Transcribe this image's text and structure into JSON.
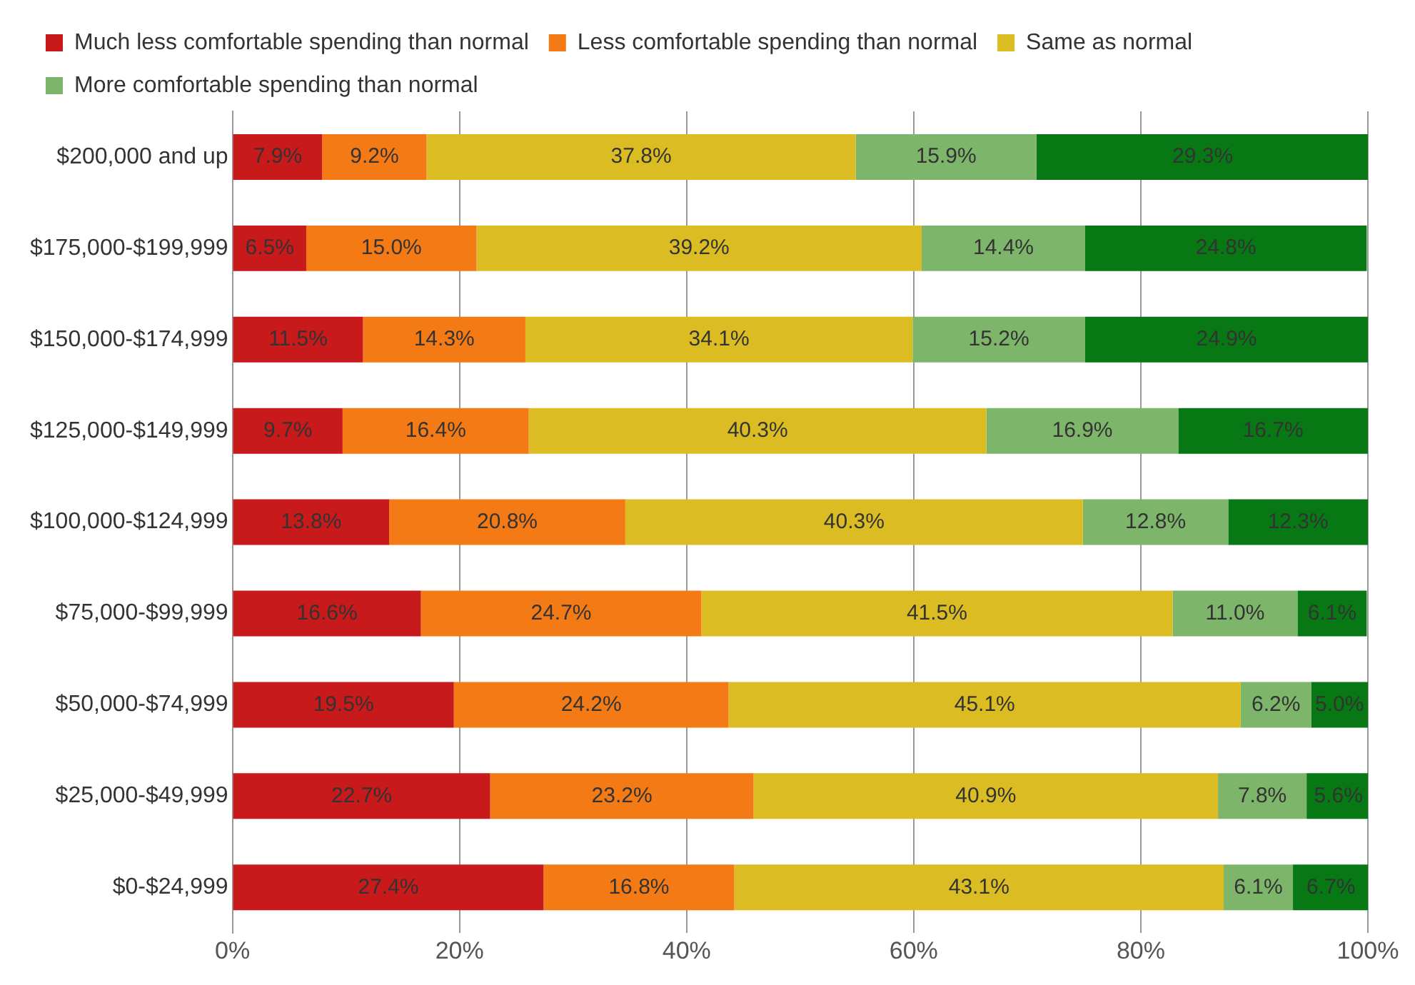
{
  "chart_data": {
    "type": "bar",
    "orientation": "horizontal",
    "stacked": true,
    "categories": [
      "$200,000 and up",
      "$175,000-$199,999",
      "$150,000-$174,999",
      "$125,000-$149,999",
      "$100,000-$124,999",
      "$75,000-$99,999",
      "$50,000-$74,999",
      "$25,000-$49,999",
      "$0-$24,999"
    ],
    "series": [
      {
        "name": "Much less comfortable spending than normal",
        "color": "#c8191b",
        "values": [
          7.9,
          6.5,
          11.5,
          9.7,
          13.8,
          16.6,
          19.5,
          22.7,
          27.4
        ],
        "value_labels": [
          "7.9%",
          "6.5%",
          "11.5%",
          "9.7%",
          "13.8%",
          "16.6%",
          "19.5%",
          "22.7%",
          "27.4%"
        ]
      },
      {
        "name": "Less comfortable spending than normal",
        "color": "#f47a16",
        "values": [
          9.2,
          15.0,
          14.3,
          16.4,
          20.8,
          24.7,
          24.2,
          23.2,
          16.8
        ],
        "value_labels": [
          "9.2%",
          "15.0%",
          "14.3%",
          "16.4%",
          "20.8%",
          "24.7%",
          "24.2%",
          "23.2%",
          "16.8%"
        ]
      },
      {
        "name": "Same as normal",
        "color": "#dbbd23",
        "values": [
          37.8,
          39.2,
          34.1,
          40.3,
          40.3,
          41.5,
          45.1,
          40.9,
          43.1
        ],
        "value_labels": [
          "37.8%",
          "39.2%",
          "34.1%",
          "40.3%",
          "40.3%",
          "41.5%",
          "45.1%",
          "40.9%",
          "43.1%"
        ]
      },
      {
        "name": "More comfortable spending than normal",
        "color": "#7db66a",
        "values": [
          15.9,
          14.4,
          15.2,
          16.9,
          12.8,
          11.0,
          6.2,
          7.8,
          6.1
        ],
        "value_labels": [
          "15.9%",
          "14.4%",
          "15.2%",
          "16.9%",
          "12.8%",
          "11.0%",
          "6.2%",
          "7.8%",
          "6.1%"
        ]
      },
      {
        "color": "#077814",
        "values": [
          29.3,
          24.8,
          24.9,
          16.7,
          12.3,
          6.1,
          5.0,
          5.6,
          6.7
        ],
        "value_labels": [
          "29.3%",
          "24.8%",
          "24.9%",
          "16.7%",
          "12.3%",
          "6.1%",
          "5.0%",
          "5.6%",
          "6.7%"
        ]
      }
    ],
    "xlim": [
      0,
      100
    ],
    "xticks": [
      {
        "value": 0,
        "label": "0%"
      },
      {
        "value": 20,
        "label": "20%"
      },
      {
        "value": 40,
        "label": "40%"
      },
      {
        "value": 60,
        "label": "60%"
      },
      {
        "value": 80,
        "label": "80%"
      },
      {
        "value": 100,
        "label": "100%"
      }
    ],
    "grid": "x",
    "legend": "top"
  }
}
